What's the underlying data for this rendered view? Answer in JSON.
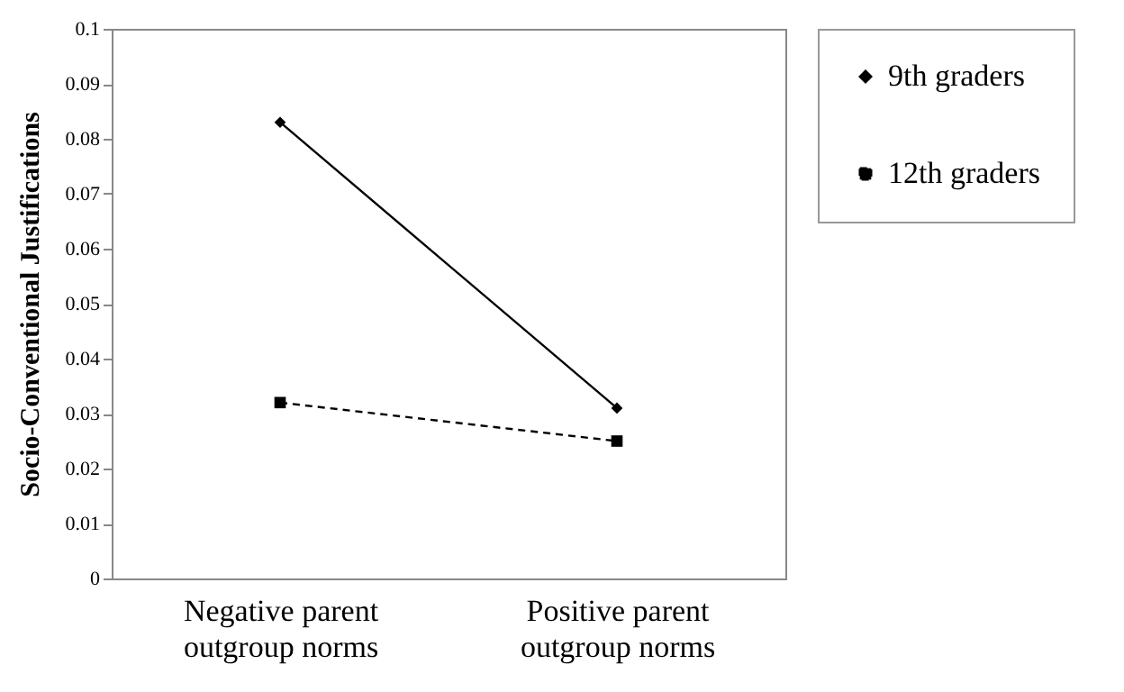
{
  "chart_data": {
    "type": "line",
    "ylabel": "Socio-Conventional Justifications",
    "categories": [
      "Negative parent outgroup norms",
      "Positive parent outgroup norms"
    ],
    "series": [
      {
        "name": "9th graders",
        "color": "#000000",
        "values": [
          0.083,
          0.031
        ],
        "marker": "diamond",
        "line_style": "solid"
      },
      {
        "name": "12th graders",
        "color": "#000000",
        "values": [
          0.032,
          0.025
        ],
        "marker": "square",
        "line_style": "dashed"
      }
    ],
    "ylim": [
      0,
      0.1
    ],
    "yticks": [
      0,
      0.01,
      0.02,
      0.03,
      0.04,
      0.05,
      0.06,
      0.07,
      0.08,
      0.09,
      0.1
    ],
    "grid": false,
    "legend": "right"
  }
}
